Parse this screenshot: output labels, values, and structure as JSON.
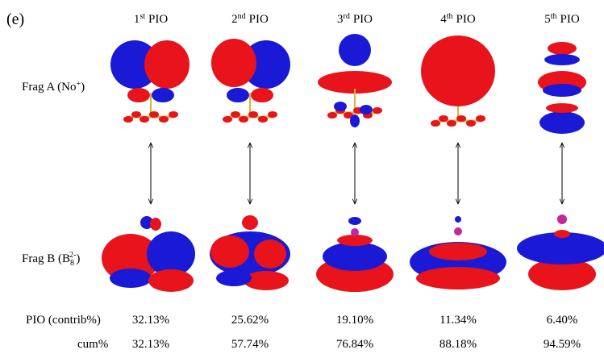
{
  "panel_label": "(e)",
  "columns": [
    {
      "num": "1",
      "sup": "st",
      "rest": "PIO",
      "contrib": "32.13%",
      "cum": "32.13%"
    },
    {
      "num": "2",
      "sup": "nd",
      "rest": "PIO",
      "contrib": "25.62%",
      "cum": "57.74%"
    },
    {
      "num": "3",
      "sup": "rd",
      "rest": "PIO",
      "contrib": "19.10%",
      "cum": "76.84%"
    },
    {
      "num": "4",
      "sup": "th",
      "rest": "PIO",
      "contrib": "11.34%",
      "cum": "88.18%"
    },
    {
      "num": "5",
      "sup": "th",
      "rest": "PIO",
      "contrib": "6.40%",
      "cum": "94.59%"
    }
  ],
  "frag_a": {
    "text": "Frag A (No",
    "sup": "+",
    "close": ")"
  },
  "frag_b": {
    "text": "Frag B (B",
    "sub": "8",
    "sup": "2-",
    "close": ")"
  },
  "row_contrib": "PIO (contrib%)",
  "row_cum": "cum%"
}
